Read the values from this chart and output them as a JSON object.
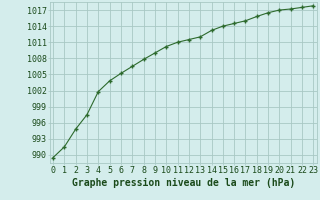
{
  "x": [
    0,
    1,
    2,
    3,
    4,
    5,
    6,
    7,
    8,
    9,
    10,
    11,
    12,
    13,
    14,
    15,
    16,
    17,
    18,
    19,
    20,
    21,
    22,
    23
  ],
  "y": [
    989.5,
    991.5,
    994.8,
    997.5,
    1001.8,
    1003.8,
    1005.2,
    1006.5,
    1007.8,
    1009.0,
    1010.2,
    1011.0,
    1011.5,
    1012.0,
    1013.2,
    1014.0,
    1014.5,
    1015.0,
    1015.8,
    1016.5,
    1017.0,
    1017.2,
    1017.5,
    1017.8
  ],
  "yticks": [
    990,
    993,
    996,
    999,
    1002,
    1005,
    1008,
    1011,
    1014,
    1017
  ],
  "xticks": [
    0,
    1,
    2,
    3,
    4,
    5,
    6,
    7,
    8,
    9,
    10,
    11,
    12,
    13,
    14,
    15,
    16,
    17,
    18,
    19,
    20,
    21,
    22,
    23
  ],
  "ylim": [
    988.5,
    1018.5
  ],
  "xlim": [
    -0.3,
    23.3
  ],
  "line_color": "#2d6a2d",
  "marker": "+",
  "bg_color": "#d4edec",
  "grid_color": "#a8c8c4",
  "label_color": "#1a4a1a",
  "xlabel": "Graphe pression niveau de la mer (hPa)",
  "xlabel_fontsize": 7.0,
  "tick_fontsize": 6.0
}
